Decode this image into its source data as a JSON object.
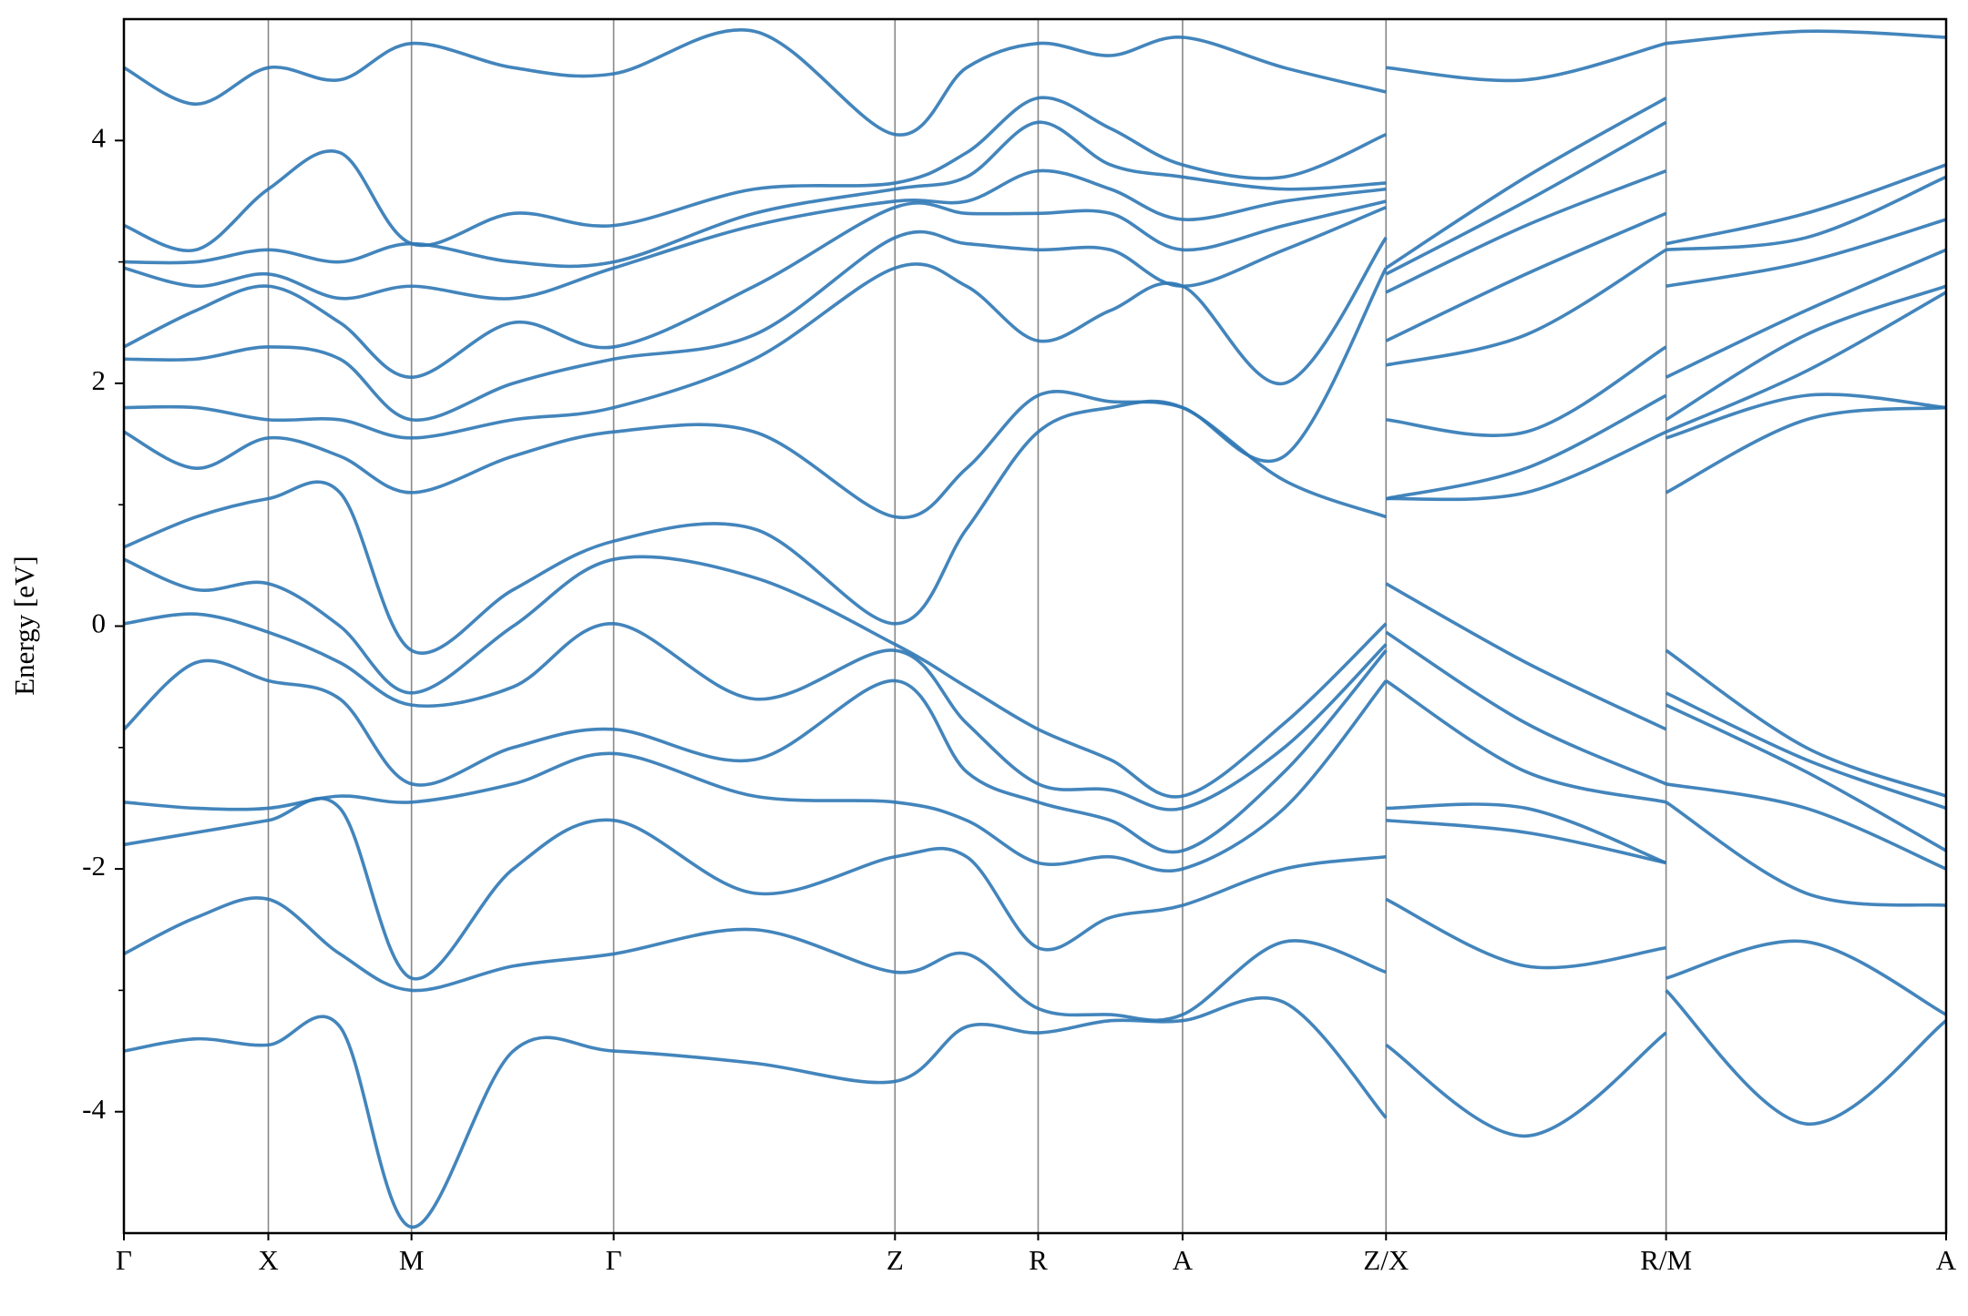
{
  "chart_data": {
    "type": "line",
    "ylabel": "Energy [eV]",
    "color": "#2f78b5",
    "ylim": [
      -5,
      5
    ],
    "yticks": [
      -4,
      -2,
      0,
      2,
      4
    ],
    "yminorticks": [
      -3,
      -1,
      1,
      3
    ],
    "xlim": [
      0,
      14.51
    ],
    "xticks": [
      {
        "value": 0,
        "label": "Γ"
      },
      {
        "value": 1.15,
        "label": "X"
      },
      {
        "value": 2.29,
        "label": "M"
      },
      {
        "value": 3.9,
        "label": "Γ"
      },
      {
        "value": 6.14,
        "label": "Z"
      },
      {
        "value": 7.28,
        "label": "R"
      },
      {
        "value": 8.43,
        "label": "A"
      },
      {
        "value": 10.05,
        "label": "Z/X"
      },
      {
        "value": 12.28,
        "label": "R/M"
      },
      {
        "value": 14.51,
        "label": "A"
      }
    ],
    "x": [
      0,
      0.575,
      1.15,
      1.72,
      2.29,
      3.1,
      3.9,
      5.02,
      6.14,
      6.71,
      7.28,
      7.855,
      8.43,
      9.24,
      10.05,
      10.05,
      10.05,
      11.165,
      12.28,
      12.28,
      12.28,
      13.395,
      14.51
    ],
    "series": [
      {
        "values": [
          4.6,
          4.3,
          4.6,
          4.5,
          4.8,
          4.6,
          4.55,
          4.9,
          4.05,
          4.6,
          4.8,
          4.7,
          4.85,
          4.6,
          4.4,
          null,
          4.6,
          4.5,
          4.8,
          null,
          4.8,
          4.9,
          4.85
        ]
      },
      {
        "values": [
          3.3,
          3.1,
          3.6,
          3.9,
          3.15,
          3.4,
          3.3,
          3.6,
          3.65,
          3.9,
          4.35,
          4.1,
          3.8,
          3.7,
          4.05,
          null,
          2.95,
          3.7,
          4.35,
          null,
          3.15,
          3.4,
          3.8
        ]
      },
      {
        "values": [
          3.0,
          3.0,
          3.1,
          3.0,
          3.15,
          3.0,
          3.0,
          3.4,
          3.6,
          3.7,
          4.15,
          3.8,
          3.7,
          3.6,
          3.65,
          null,
          2.9,
          3.5,
          4.15,
          null,
          3.1,
          3.2,
          3.7
        ]
      },
      {
        "values": [
          2.95,
          2.8,
          2.9,
          2.7,
          2.8,
          2.7,
          2.95,
          3.3,
          3.5,
          3.5,
          3.75,
          3.6,
          3.35,
          3.5,
          3.6,
          null,
          2.75,
          3.3,
          3.75,
          null,
          2.8,
          3.0,
          3.35
        ]
      },
      {
        "values": [
          2.3,
          2.6,
          2.8,
          2.5,
          2.05,
          2.5,
          2.3,
          2.8,
          3.45,
          3.4,
          3.4,
          3.4,
          3.1,
          3.3,
          3.5,
          null,
          2.35,
          2.9,
          3.4,
          null,
          2.05,
          2.6,
          3.1
        ]
      },
      {
        "values": [
          2.2,
          2.2,
          2.3,
          2.2,
          1.7,
          2.0,
          2.2,
          2.4,
          3.2,
          3.15,
          3.1,
          3.1,
          2.8,
          3.1,
          3.45,
          null,
          2.15,
          2.4,
          3.1,
          null,
          1.7,
          2.4,
          2.8
        ]
      },
      {
        "values": [
          1.8,
          1.8,
          1.7,
          1.7,
          1.55,
          1.7,
          1.8,
          2.2,
          2.95,
          2.8,
          2.35,
          2.6,
          2.8,
          2.0,
          3.2,
          null,
          1.7,
          1.6,
          2.3,
          null,
          1.6,
          2.1,
          2.75
        ]
      },
      {
        "values": [
          1.6,
          1.3,
          1.55,
          1.4,
          1.1,
          1.4,
          1.6,
          1.6,
          0.9,
          1.3,
          1.9,
          1.85,
          1.8,
          1.4,
          2.95,
          null,
          1.05,
          1.3,
          1.9,
          null,
          1.55,
          1.9,
          1.8
        ]
      },
      {
        "values": [
          0.65,
          0.9,
          1.05,
          1.1,
          -0.2,
          0.3,
          0.7,
          0.8,
          0.02,
          0.8,
          1.6,
          1.8,
          1.8,
          1.2,
          0.9,
          null,
          1.05,
          1.1,
          1.6,
          null,
          1.1,
          1.7,
          1.8
        ]
      },
      {
        "values": [
          0.55,
          0.3,
          0.35,
          0.0,
          -0.55,
          0.0,
          0.55,
          0.4,
          -0.15,
          -0.5,
          -0.85,
          -1.1,
          -1.4,
          -0.8,
          0.02,
          null,
          0.35,
          -0.3,
          -0.85,
          null,
          -0.2,
          -1.0,
          -1.4
        ]
      },
      {
        "values": [
          0.02,
          0.1,
          -0.05,
          -0.3,
          -0.65,
          -0.5,
          0.02,
          -0.6,
          -0.2,
          -0.8,
          -1.3,
          -1.35,
          -1.5,
          -1.0,
          -0.15,
          null,
          -0.05,
          -0.8,
          -1.3,
          null,
          -0.55,
          -1.1,
          -1.5
        ]
      },
      {
        "values": [
          -0.85,
          -0.3,
          -0.45,
          -0.6,
          -1.3,
          -1.0,
          -0.85,
          -1.1,
          -0.45,
          -1.2,
          -1.45,
          -1.6,
          -1.85,
          -1.2,
          -0.2,
          null,
          -0.45,
          -1.2,
          -1.45,
          null,
          -0.65,
          -1.2,
          -1.85
        ]
      },
      {
        "values": [
          -1.45,
          -1.5,
          -1.5,
          -1.4,
          -1.45,
          -1.3,
          -1.05,
          -1.4,
          -1.45,
          -1.6,
          -1.95,
          -1.9,
          -2.0,
          -1.5,
          -0.45,
          null,
          -1.5,
          -1.5,
          -1.95,
          null,
          -1.3,
          -1.5,
          -2.0
        ]
      },
      {
        "values": [
          -1.8,
          -1.7,
          -1.6,
          -1.5,
          -2.9,
          -2.0,
          -1.6,
          -2.2,
          -1.9,
          -1.9,
          -2.65,
          -2.4,
          -2.3,
          -2.0,
          -1.9,
          null,
          -1.6,
          -1.7,
          -1.95,
          null,
          -1.45,
          -2.2,
          -2.3
        ]
      },
      {
        "values": [
          -2.7,
          -2.4,
          -2.25,
          -2.7,
          -3.0,
          -2.8,
          -2.7,
          -2.5,
          -2.85,
          -2.7,
          -3.15,
          -3.2,
          -3.2,
          -2.6,
          -2.85,
          null,
          -2.25,
          -2.8,
          -2.65,
          null,
          -2.9,
          -2.6,
          -3.2
        ]
      },
      {
        "values": [
          -3.5,
          -3.4,
          -3.45,
          -3.3,
          -4.95,
          -3.5,
          -3.5,
          -3.6,
          -3.75,
          -3.3,
          -3.35,
          -3.25,
          -3.25,
          -3.1,
          -4.05,
          null,
          -3.45,
          -4.2,
          -3.35,
          null,
          -3.0,
          -4.1,
          -3.25
        ]
      }
    ]
  }
}
